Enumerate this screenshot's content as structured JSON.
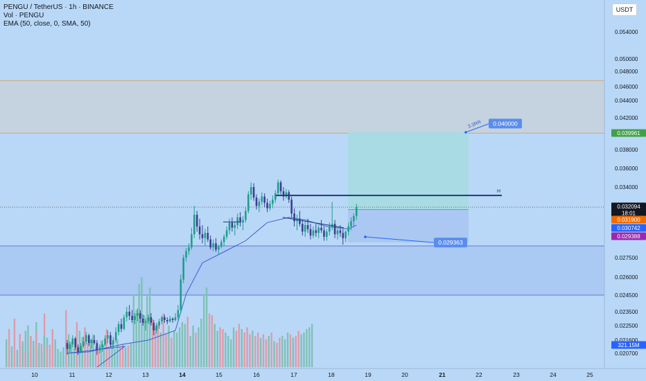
{
  "header": {
    "title": "PENGU / TetherUS · 1h · BINANCE",
    "volume_label": "Vol · PENGU",
    "ema_label": "EMA (50, close, 0, SMA, 50)"
  },
  "currency_button": "USDT",
  "colors": {
    "background": "#b9d8f7",
    "up": "#1e9e8a",
    "down": "#3a3f8f",
    "volume_up": "#7fc1b6",
    "volume_down": "#e09aa8",
    "ema": "#3c5fcf",
    "resistance_zone": "#c6d2da",
    "profit_zone": "#a7dbe1",
    "loss_zone": "#a8c6f0",
    "support_zone": "#a6c6f1"
  },
  "chart_data": {
    "type": "candlestick",
    "symbol": "PENGU / TetherUS",
    "interval": "1h",
    "exchange": "BINANCE",
    "x_ticks": [
      "10",
      "11",
      "12",
      "13",
      "14",
      "15",
      "16",
      "17",
      "18",
      "19",
      "20",
      "21",
      "22",
      "23",
      "24",
      "25"
    ],
    "x_ticks_bold": [
      "14",
      "21"
    ],
    "price_ticks": [
      "0.054000",
      "0.050000",
      "0.048000",
      "0.046000",
      "0.044000",
      "0.042000",
      "0.038000",
      "0.036000",
      "0.034000",
      "0.027500",
      "0.026000",
      "0.024500",
      "0.023500",
      "0.022500",
      "0.021600",
      "0.020700"
    ],
    "price_ticks_num": [
      0.054,
      0.05,
      0.048,
      0.046,
      0.044,
      0.042,
      0.038,
      0.036,
      0.034,
      0.0275,
      0.026,
      0.0245,
      0.0235,
      0.0225,
      0.0216,
      0.0207
    ],
    "price_badges": [
      {
        "label": "0.039961",
        "value": 0.039961,
        "color": "#43a047"
      },
      {
        "label": "0.032094",
        "value": 0.032094,
        "sub": "18:01",
        "color": "#131722"
      },
      {
        "label": "0.031900",
        "value": 0.0319,
        "color": "#ef6c00"
      },
      {
        "label": "0.030742",
        "value": 0.030742,
        "color": "#2962ff"
      },
      {
        "label": "0.029388",
        "value": 0.029388,
        "color": "#9c27b0"
      },
      {
        "label": "321.15M",
        "color": "#2962ff"
      }
    ],
    "annotations": [
      {
        "label": "0.040000",
        "kind": "target"
      },
      {
        "label": "0.029363",
        "kind": "stop"
      },
      {
        "label": "3.3RR",
        "kind": "ratio"
      },
      {
        "label": "H",
        "kind": "horizontal-line"
      }
    ],
    "zones": {
      "resistance": [
        0.0399,
        0.0468
      ],
      "support": [
        0.0245,
        0.0291
      ],
      "position_entry": 0.0319,
      "position_target": 0.04,
      "position_stop": 0.02936
    },
    "horizontal_line_H": 0.0332,
    "candles": [
      [
        0.0214,
        0.0216,
        0.0206,
        0.021
      ],
      [
        0.021,
        0.0215,
        0.0207,
        0.0213
      ],
      [
        0.0213,
        0.0219,
        0.0211,
        0.0217
      ],
      [
        0.0217,
        0.0218,
        0.0209,
        0.0211
      ],
      [
        0.0211,
        0.0213,
        0.0206,
        0.0208
      ],
      [
        0.0208,
        0.0214,
        0.0207,
        0.0212
      ],
      [
        0.0212,
        0.0218,
        0.0211,
        0.0215
      ],
      [
        0.0215,
        0.0221,
        0.0213,
        0.0219
      ],
      [
        0.0219,
        0.022,
        0.0212,
        0.0214
      ],
      [
        0.0214,
        0.0217,
        0.021,
        0.0216
      ],
      [
        0.0216,
        0.0219,
        0.0213,
        0.0214
      ],
      [
        0.0214,
        0.0216,
        0.0206,
        0.0209
      ],
      [
        0.0209,
        0.0213,
        0.0207,
        0.0211
      ],
      [
        0.0211,
        0.0216,
        0.0208,
        0.0213
      ],
      [
        0.0213,
        0.0219,
        0.0212,
        0.0217
      ],
      [
        0.0217,
        0.0222,
        0.0214,
        0.0219
      ],
      [
        0.0219,
        0.0221,
        0.0211,
        0.0213
      ],
      [
        0.0213,
        0.0218,
        0.021,
        0.0216
      ],
      [
        0.0216,
        0.0224,
        0.0214,
        0.0221
      ],
      [
        0.0221,
        0.0228,
        0.0219,
        0.0226
      ],
      [
        0.0226,
        0.023,
        0.0221,
        0.0223
      ],
      [
        0.0223,
        0.0233,
        0.0222,
        0.0231
      ],
      [
        0.0231,
        0.0238,
        0.0228,
        0.0235
      ],
      [
        0.0235,
        0.0239,
        0.0229,
        0.0232
      ],
      [
        0.0232,
        0.0236,
        0.0227,
        0.0229
      ],
      [
        0.0229,
        0.0234,
        0.0226,
        0.0232
      ],
      [
        0.0232,
        0.0237,
        0.0228,
        0.0234
      ],
      [
        0.0234,
        0.0236,
        0.0227,
        0.023
      ],
      [
        0.023,
        0.0233,
        0.0225,
        0.0227
      ],
      [
        0.0227,
        0.023,
        0.0222,
        0.0228
      ],
      [
        0.0228,
        0.0233,
        0.0226,
        0.0231
      ],
      [
        0.0231,
        0.0234,
        0.0225,
        0.0227
      ],
      [
        0.0227,
        0.0229,
        0.0219,
        0.0222
      ],
      [
        0.0222,
        0.0227,
        0.022,
        0.0225
      ],
      [
        0.0225,
        0.023,
        0.0223,
        0.0228
      ],
      [
        0.0228,
        0.0232,
        0.0226,
        0.0231
      ],
      [
        0.0231,
        0.0233,
        0.0227,
        0.0229
      ],
      [
        0.0229,
        0.0231,
        0.0226,
        0.0228
      ],
      [
        0.0228,
        0.0232,
        0.0227,
        0.023
      ],
      [
        0.023,
        0.0231,
        0.0227,
        0.0229
      ],
      [
        0.0229,
        0.0234,
        0.0228,
        0.0231
      ],
      [
        0.0231,
        0.0239,
        0.0229,
        0.0236
      ],
      [
        0.0236,
        0.0262,
        0.0234,
        0.0258
      ],
      [
        0.0258,
        0.0279,
        0.0255,
        0.0275
      ],
      [
        0.0275,
        0.0288,
        0.0272,
        0.0284
      ],
      [
        0.0284,
        0.0293,
        0.0279,
        0.0289
      ],
      [
        0.0289,
        0.0305,
        0.0286,
        0.03
      ],
      [
        0.03,
        0.0322,
        0.0297,
        0.0315
      ],
      [
        0.0315,
        0.0318,
        0.0302,
        0.0306
      ],
      [
        0.0306,
        0.0312,
        0.0296,
        0.03
      ],
      [
        0.03,
        0.0307,
        0.0293,
        0.0297
      ],
      [
        0.0297,
        0.0304,
        0.0291,
        0.0301
      ],
      [
        0.0301,
        0.0306,
        0.0294,
        0.0296
      ],
      [
        0.0296,
        0.0299,
        0.0286,
        0.0289
      ],
      [
        0.0289,
        0.0296,
        0.0284,
        0.0293
      ],
      [
        0.0293,
        0.0297,
        0.0283,
        0.0286
      ],
      [
        0.0286,
        0.0292,
        0.0279,
        0.029
      ],
      [
        0.029,
        0.0296,
        0.0288,
        0.0294
      ],
      [
        0.0294,
        0.03,
        0.0291,
        0.0298
      ],
      [
        0.0298,
        0.0306,
        0.0296,
        0.0303
      ],
      [
        0.0303,
        0.0312,
        0.03,
        0.0309
      ],
      [
        0.0309,
        0.0313,
        0.0302,
        0.0305
      ],
      [
        0.0305,
        0.031,
        0.0299,
        0.0307
      ],
      [
        0.0307,
        0.0316,
        0.0304,
        0.0313
      ],
      [
        0.0313,
        0.0317,
        0.0306,
        0.0309
      ],
      [
        0.0309,
        0.0314,
        0.0303,
        0.0311
      ],
      [
        0.0311,
        0.0321,
        0.0309,
        0.0318
      ],
      [
        0.0318,
        0.0336,
        0.0316,
        0.0333
      ],
      [
        0.0333,
        0.0345,
        0.0328,
        0.034
      ],
      [
        0.034,
        0.0344,
        0.0327,
        0.033
      ],
      [
        0.033,
        0.0333,
        0.0319,
        0.0322
      ],
      [
        0.0322,
        0.0329,
        0.0317,
        0.0326
      ],
      [
        0.0326,
        0.0335,
        0.0323,
        0.0331
      ],
      [
        0.0331,
        0.0334,
        0.0321,
        0.0325
      ],
      [
        0.0325,
        0.0329,
        0.0317,
        0.032
      ],
      [
        0.032,
        0.0327,
        0.0318,
        0.0324
      ],
      [
        0.0324,
        0.0332,
        0.032,
        0.0328
      ],
      [
        0.0328,
        0.0337,
        0.0325,
        0.0334
      ],
      [
        0.0334,
        0.0348,
        0.0332,
        0.0345
      ],
      [
        0.0345,
        0.0347,
        0.0333,
        0.0336
      ],
      [
        0.0336,
        0.034,
        0.0327,
        0.0331
      ],
      [
        0.0331,
        0.0338,
        0.0329,
        0.0335
      ],
      [
        0.0335,
        0.0337,
        0.0325,
        0.0328
      ],
      [
        0.0328,
        0.0331,
        0.0313,
        0.0316
      ],
      [
        0.0316,
        0.032,
        0.0306,
        0.031
      ],
      [
        0.031,
        0.0315,
        0.0303,
        0.0312
      ],
      [
        0.0312,
        0.0318,
        0.0306,
        0.0308
      ],
      [
        0.0308,
        0.0311,
        0.0299,
        0.0302
      ],
      [
        0.0302,
        0.031,
        0.0298,
        0.0307
      ],
      [
        0.0307,
        0.0312,
        0.0301,
        0.0304
      ],
      [
        0.0304,
        0.0308,
        0.0296,
        0.0299
      ],
      [
        0.0299,
        0.0306,
        0.0297,
        0.0303
      ],
      [
        0.0303,
        0.0308,
        0.0298,
        0.0301
      ],
      [
        0.0301,
        0.0307,
        0.0297,
        0.0305
      ],
      [
        0.0305,
        0.0311,
        0.0301,
        0.0303
      ],
      [
        0.0303,
        0.0306,
        0.0295,
        0.0298
      ],
      [
        0.0298,
        0.0304,
        0.0295,
        0.0302
      ],
      [
        0.0302,
        0.0309,
        0.0299,
        0.0306
      ],
      [
        0.0306,
        0.0326,
        0.0303,
        0.0308
      ],
      [
        0.0308,
        0.0311,
        0.0297,
        0.03
      ],
      [
        0.03,
        0.0305,
        0.0296,
        0.0303
      ],
      [
        0.0303,
        0.0307,
        0.0298,
        0.0301
      ],
      [
        0.0301,
        0.0304,
        0.0292,
        0.0297
      ],
      [
        0.0297,
        0.0303,
        0.0294,
        0.0302
      ],
      [
        0.0302,
        0.0309,
        0.0299,
        0.0306
      ],
      [
        0.0306,
        0.0313,
        0.0303,
        0.031
      ],
      [
        0.031,
        0.0316,
        0.0306,
        0.0314
      ],
      [
        0.0314,
        0.0324,
        0.0311,
        0.0321
      ]
    ],
    "volumes": [
      150,
      210,
      95,
      180,
      120,
      260,
      140,
      90,
      310,
      170,
      130,
      220,
      160,
      105,
      90,
      115,
      330,
      190,
      145,
      110,
      260,
      210,
      175,
      230,
      140,
      160,
      190,
      120,
      95,
      150,
      130,
      220,
      110,
      140,
      105,
      160,
      120,
      135,
      115,
      125,
      140,
      420,
      330,
      480,
      520,
      300,
      410,
      460,
      280,
      230,
      250,
      200,
      310,
      190,
      240,
      170,
      210,
      200,
      230,
      260,
      250,
      290,
      180,
      240,
      200,
      230,
      280,
      420,
      460,
      310,
      300,
      250,
      210,
      230,
      220,
      200,
      180,
      160,
      230,
      210,
      250,
      220,
      200,
      230,
      190,
      210,
      180,
      200,
      170,
      190,
      160,
      180,
      200,
      150,
      140,
      170,
      180,
      160,
      200,
      190,
      170,
      180,
      210,
      190,
      200,
      220,
      230,
      250
    ],
    "ema": [
      [
        0,
        0.0207
      ],
      [
        8,
        0.0208
      ],
      [
        20,
        0.0213
      ],
      [
        30,
        0.0216
      ],
      [
        40,
        0.0222
      ],
      [
        44,
        0.0246
      ],
      [
        50,
        0.0271
      ],
      [
        58,
        0.0283
      ],
      [
        66,
        0.0295
      ],
      [
        74,
        0.0309
      ],
      [
        82,
        0.0313
      ],
      [
        88,
        0.0311
      ],
      [
        96,
        0.0306
      ],
      [
        104,
        0.0304
      ],
      [
        107,
        0.0307
      ]
    ]
  }
}
